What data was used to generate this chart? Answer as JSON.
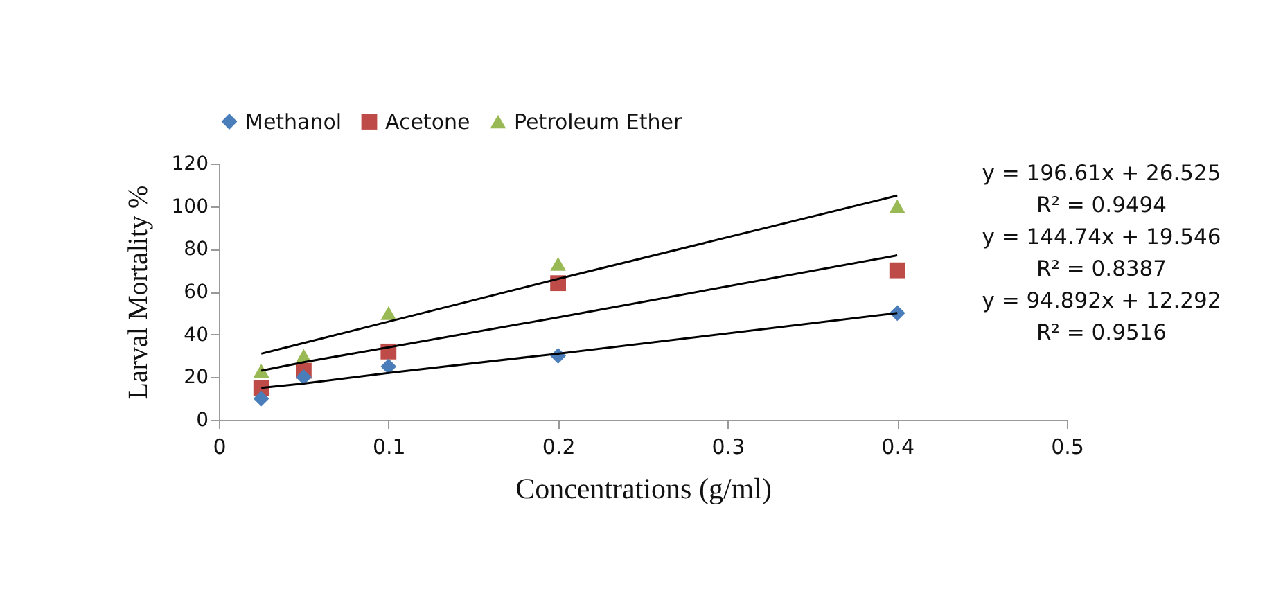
{
  "chart_data": {
    "type": "scatter",
    "xlabel": "Concentrations (g/ml)",
    "ylabel": "Larval Mortality %",
    "x": [
      0.025,
      0.05,
      0.1,
      0.2,
      0.4
    ],
    "series": [
      {
        "name": "Methanol",
        "color": "#4a7ebb",
        "marker": "diamond",
        "values": [
          10,
          20,
          25,
          30,
          50
        ]
      },
      {
        "name": "Acetone",
        "color": "#be4b48",
        "marker": "square",
        "values": [
          15,
          23,
          32,
          64,
          70
        ]
      },
      {
        "name": "Petroleum Ether",
        "color": "#98b954",
        "marker": "triangle",
        "values": [
          23,
          30,
          50,
          73,
          100
        ]
      },
      {
        "type": "line",
        "color": "#000000",
        "marker": "none",
        "values": [
          31,
          36,
          46,
          66,
          105
        ]
      },
      {
        "type": "line",
        "color": "#000000",
        "marker": "none",
        "values": [
          23,
          27,
          34,
          48,
          77
        ]
      },
      {
        "type": "line",
        "color": "#000000",
        "marker": "none",
        "values": [
          15,
          17,
          22,
          31,
          50
        ]
      }
    ],
    "xlim": [
      0,
      0.5
    ],
    "xticks": [
      0,
      0.1,
      0.2,
      0.3,
      0.4,
      0.5
    ],
    "ylim": [
      0,
      120
    ],
    "yticks": [
      0,
      20,
      40,
      60,
      80,
      100,
      120
    ],
    "grid": false,
    "legend": "top",
    "annotations": [
      "y = 196.61x + 26.525",
      "R² = 0.9494",
      "y = 144.74x + 19.546",
      "R² = 0.8387",
      "y = 94.892x + 12.292",
      "R² = 0.9516"
    ]
  }
}
